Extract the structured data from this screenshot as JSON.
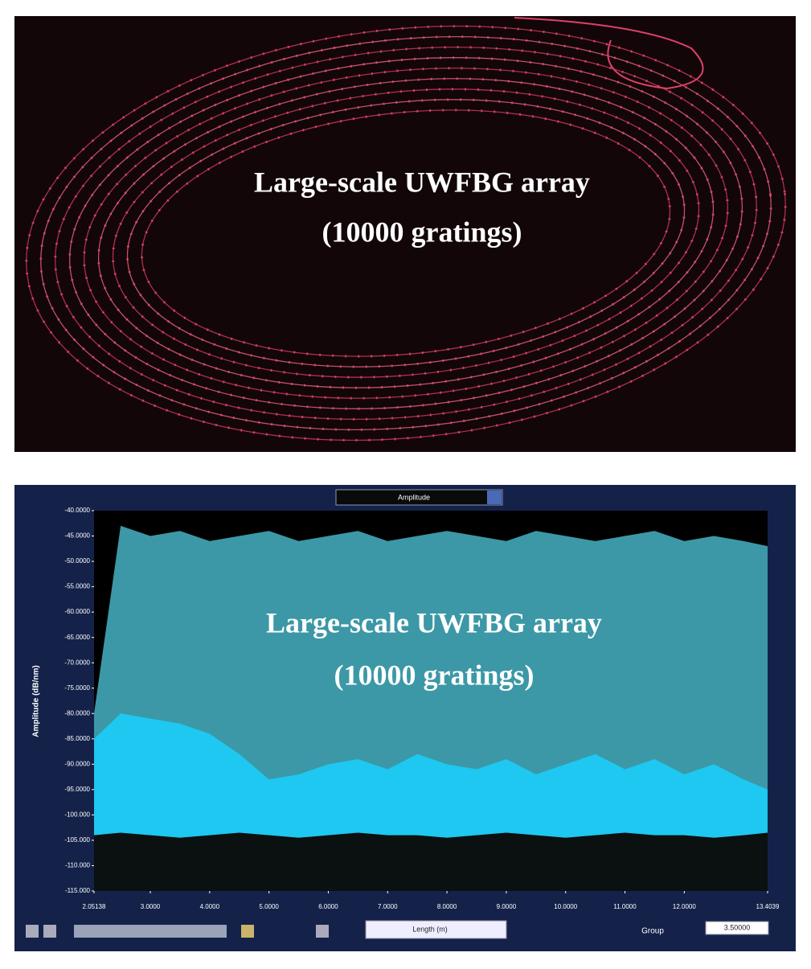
{
  "photo": {
    "caption": [
      "Large-scale UWFBG array",
      "(10000 gratings)"
    ]
  },
  "controls": {
    "mode": "Amplitude",
    "x_axis_select": "Length (m)",
    "group_label": "Group",
    "group_value": "3.50000"
  },
  "chart_data": {
    "type": "area",
    "y_label": "Amplitude (dB/nm)",
    "annotations": [
      "Large-scale UWFBG array",
      "(10000 gratings)"
    ],
    "x": [
      2.05138,
      2.5,
      3,
      3.5,
      4,
      4.5,
      5,
      5.5,
      6,
      6.5,
      7,
      7.5,
      8,
      8.5,
      9,
      9.5,
      10,
      10.5,
      11,
      11.5,
      12,
      12.5,
      13,
      13.4039
    ],
    "series": [
      {
        "color": "#3c98a6",
        "values": [
          -80,
          -43,
          -45,
          -44,
          -46,
          -45,
          -44,
          -46,
          -45,
          -44,
          -46,
          -45,
          -44,
          -45,
          -46,
          -44,
          -45,
          -46,
          -45,
          -44,
          -46,
          -45,
          -46,
          -47
        ]
      },
      {
        "color": "#1ec8f0",
        "values": [
          -85,
          -80,
          -81,
          -82,
          -84,
          -88,
          -93,
          -92,
          -90,
          -89,
          -91,
          -88,
          -90,
          -91,
          -89,
          -92,
          -90,
          -88,
          -91,
          -89,
          -92,
          -90,
          -93,
          -95
        ]
      },
      {
        "color": "#0b1010",
        "values": [
          -104,
          -103.5,
          -104,
          -104.5,
          -104,
          -103.5,
          -104,
          -104.5,
          -104,
          -103.5,
          -104,
          -104,
          -104.5,
          -104,
          -103.5,
          -104,
          -104.5,
          -104,
          -103.5,
          -104,
          -104,
          -104.5,
          -104,
          -103.5
        ]
      }
    ],
    "xlim": [
      2.05138,
      13.4039
    ],
    "ylim": [
      -115,
      -40
    ],
    "xticks": [
      2.05138,
      {
        "value": 3,
        "label": "3.0000"
      },
      {
        "value": 4,
        "label": "4.0000"
      },
      {
        "value": 5,
        "label": "5.0000"
      },
      {
        "value": 6,
        "label": "6.0000"
      },
      {
        "value": 7,
        "label": "7.0000"
      },
      {
        "value": 8,
        "label": "8.0000"
      },
      {
        "value": 9,
        "label": "9.0000"
      },
      {
        "value": 10,
        "label": "10.0000"
      },
      {
        "value": 11,
        "label": "11.0000"
      },
      {
        "value": 12,
        "label": "12.0000"
      },
      13.4039
    ],
    "yticks": [
      {
        "value": -40,
        "label": "-40.0000"
      },
      {
        "value": -45,
        "label": "-45.0000"
      },
      {
        "value": -50,
        "label": "-50.0000"
      },
      {
        "value": -55,
        "label": "-55.0000"
      },
      {
        "value": -60,
        "label": "-60.0000"
      },
      {
        "value": -65,
        "label": "-65.0000"
      },
      {
        "value": -70,
        "label": "-70.0000"
      },
      {
        "value": -75,
        "label": "-75.0000"
      },
      {
        "value": -80,
        "label": "-80.0000"
      },
      {
        "value": -85,
        "label": "-85.0000"
      },
      {
        "value": -90,
        "label": "-90.0000"
      },
      {
        "value": -95,
        "label": "-95.0000"
      },
      {
        "value": -100,
        "label": "-100.000"
      },
      {
        "value": -105,
        "label": "-105.000"
      },
      {
        "value": -110,
        "label": "-110.000"
      },
      {
        "value": -115,
        "label": "-115.000"
      }
    ]
  }
}
